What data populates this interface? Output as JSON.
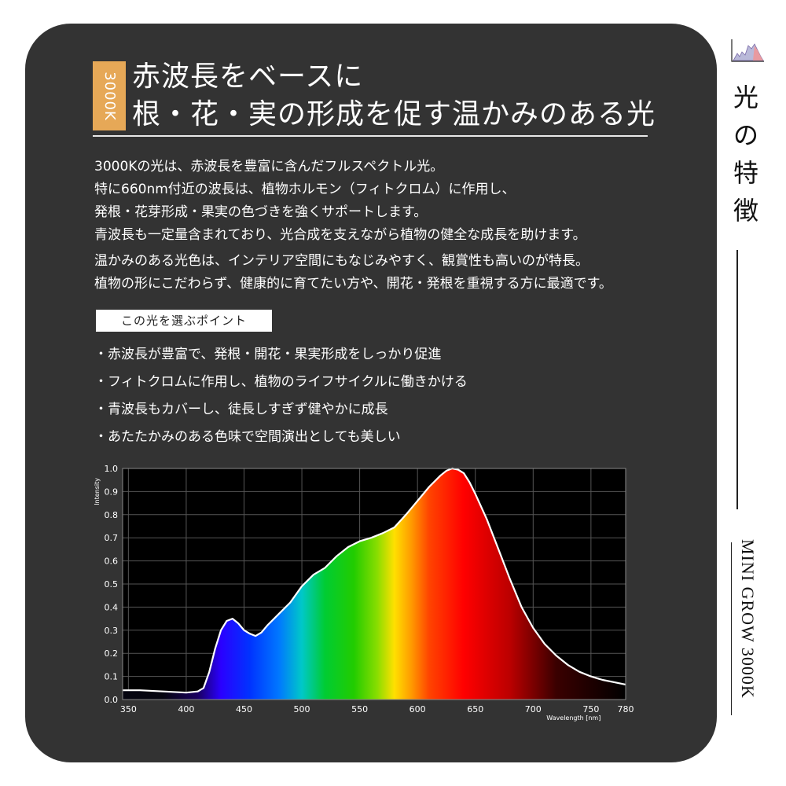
{
  "badge": "3000K",
  "title": [
    "赤波長をベースに",
    "根・花・実の形成を促す温かみのある光"
  ],
  "paragraph1": [
    "3000Kの光は、赤波長を豊富に含んだフルスペクトル光。",
    "特に660nm付近の波長は、植物ホルモン（フィトクロム）に作用し、",
    "発根・花芽形成・果実の色づきを強くサポートします。",
    "青波長も一定量含まれており、光合成を支えながら植物の健全な成長を助けます。"
  ],
  "paragraph2": [
    "温かみのある光色は、インテリア空間にもなじみやすく、観賞性も高いのが特長。",
    "植物の形にこだわらず、健康的に育てたい方や、開花・発根を重視する方に最適です。"
  ],
  "points_label": "この光を選ぶポイント",
  "points": [
    "・赤波長が豊富で、発根・開花・果実形成をしっかり促進",
    "・フィトクロムに作用し、植物のライフサイクルに働きかける",
    "・青波長もカバーし、徒長しすぎず健やかに成長",
    "・あたたかみのある色味で空間演出としても美しい"
  ],
  "side": {
    "title_chars": [
      "光",
      "の",
      "特",
      "徴"
    ],
    "product": "MINI GROW 3000K",
    "icon": "spectrum-chart-icon"
  },
  "colors": {
    "card": "#333333",
    "accent": "#e6a857",
    "text": "#ffffff"
  },
  "chart_data": {
    "type": "area",
    "xlabel": "Wavelength [nm]",
    "ylabel": "Intensity",
    "xlim": [
      345,
      780
    ],
    "ylim": [
      0,
      1.0
    ],
    "x_ticks": [
      350,
      400,
      450,
      500,
      550,
      600,
      650,
      700,
      750,
      780
    ],
    "y_ticks": [
      0.0,
      0.1,
      0.2,
      0.3,
      0.4,
      0.5,
      0.6,
      0.7,
      0.8,
      0.9,
      1.0
    ],
    "grid": true,
    "series": [
      {
        "x": [
          345,
          360,
          380,
          400,
          410,
          415,
          420,
          425,
          430,
          435,
          440,
          445,
          450,
          455,
          460,
          465,
          470,
          480,
          490,
          500,
          510,
          520,
          530,
          540,
          550,
          560,
          570,
          580,
          590,
          600,
          610,
          620,
          625,
          630,
          635,
          640,
          645,
          650,
          660,
          670,
          680,
          690,
          700,
          710,
          720,
          730,
          740,
          750,
          760,
          770,
          780
        ],
        "y": [
          0.04,
          0.04,
          0.035,
          0.03,
          0.035,
          0.05,
          0.12,
          0.22,
          0.3,
          0.34,
          0.35,
          0.33,
          0.3,
          0.285,
          0.275,
          0.29,
          0.32,
          0.37,
          0.42,
          0.49,
          0.54,
          0.57,
          0.62,
          0.66,
          0.685,
          0.7,
          0.72,
          0.745,
          0.8,
          0.86,
          0.92,
          0.97,
          0.99,
          1.0,
          0.995,
          0.98,
          0.94,
          0.89,
          0.78,
          0.65,
          0.52,
          0.4,
          0.31,
          0.24,
          0.19,
          0.15,
          0.12,
          0.1,
          0.085,
          0.075,
          0.065
        ]
      }
    ]
  }
}
